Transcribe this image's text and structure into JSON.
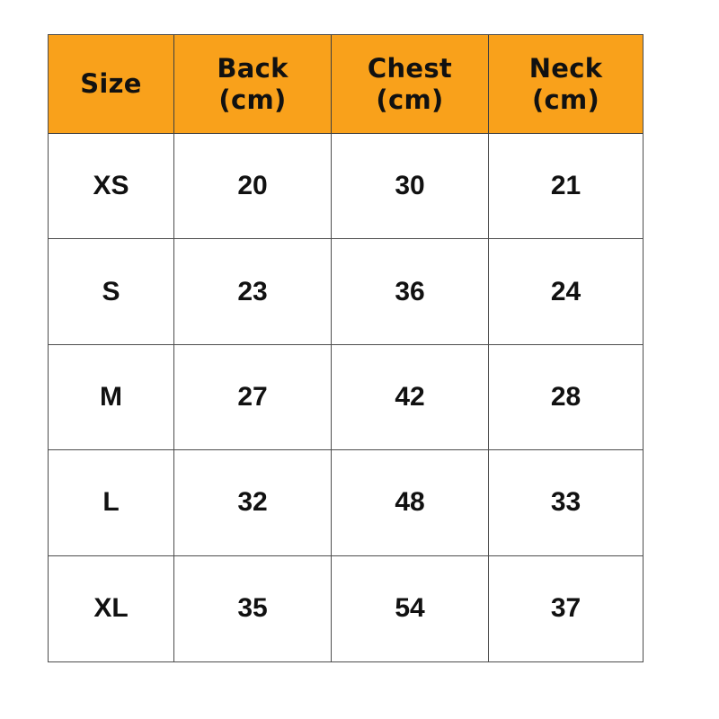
{
  "colors": {
    "header_background": "#F9A11B",
    "border": "#4d4d4d",
    "text": "#111111",
    "page_background": "#ffffff"
  },
  "table": {
    "headers": [
      "Size",
      "Back\n(cm)",
      "Chest\n(cm)",
      "Neck\n(cm)"
    ],
    "rows": [
      {
        "size": "XS",
        "back": "20",
        "chest": "30",
        "neck": "21"
      },
      {
        "size": "S",
        "back": "23",
        "chest": "36",
        "neck": "24"
      },
      {
        "size": "M",
        "back": "27",
        "chest": "42",
        "neck": "28"
      },
      {
        "size": "L",
        "back": "32",
        "chest": "48",
        "neck": "33"
      },
      {
        "size": "XL",
        "back": "35",
        "chest": "54",
        "neck": "37"
      }
    ]
  },
  "chart_data": {
    "type": "table",
    "title": "",
    "columns": [
      "Size",
      "Back (cm)",
      "Chest (cm)",
      "Neck (cm)"
    ],
    "rows": [
      [
        "XS",
        20,
        30,
        21
      ],
      [
        "S",
        23,
        36,
        24
      ],
      [
        "M",
        27,
        42,
        28
      ],
      [
        "L",
        32,
        48,
        33
      ],
      [
        "XL",
        35,
        54,
        37
      ]
    ]
  }
}
